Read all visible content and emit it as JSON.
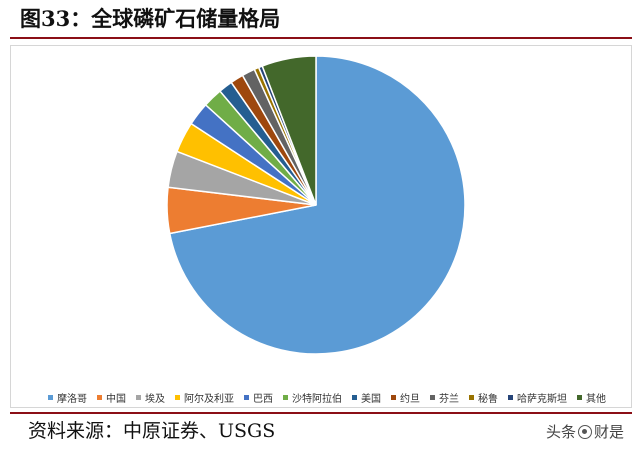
{
  "title": "图33：全球磷矿石储量格局",
  "source": "资料来源：中原证券、USGS",
  "watermark": {
    "left": "头条",
    "right": "财是"
  },
  "chart_data": {
    "type": "pie",
    "start_angle_deg": 0,
    "direction": "clockwise",
    "legend_position": "bottom",
    "series": [
      {
        "name": "摩洛哥",
        "value": 71.0,
        "color": "#5B9BD5"
      },
      {
        "name": "中国",
        "value": 4.9,
        "color": "#ED7D31"
      },
      {
        "name": "埃及",
        "value": 3.9,
        "color": "#A5A5A5"
      },
      {
        "name": "阿尔及利亚",
        "value": 3.3,
        "color": "#FFC000"
      },
      {
        "name": "巴西",
        "value": 2.5,
        "color": "#4472C4"
      },
      {
        "name": "沙特阿拉伯",
        "value": 2.1,
        "color": "#70AD47"
      },
      {
        "name": "美国",
        "value": 1.5,
        "color": "#255E91"
      },
      {
        "name": "约旦",
        "value": 1.4,
        "color": "#9E480E"
      },
      {
        "name": "芬兰",
        "value": 1.4,
        "color": "#636363"
      },
      {
        "name": "秘鲁",
        "value": 0.5,
        "color": "#997300"
      },
      {
        "name": "哈萨克斯坦",
        "value": 0.4,
        "color": "#264478"
      },
      {
        "name": "其他",
        "value": 5.8,
        "color": "#43682B"
      }
    ]
  }
}
